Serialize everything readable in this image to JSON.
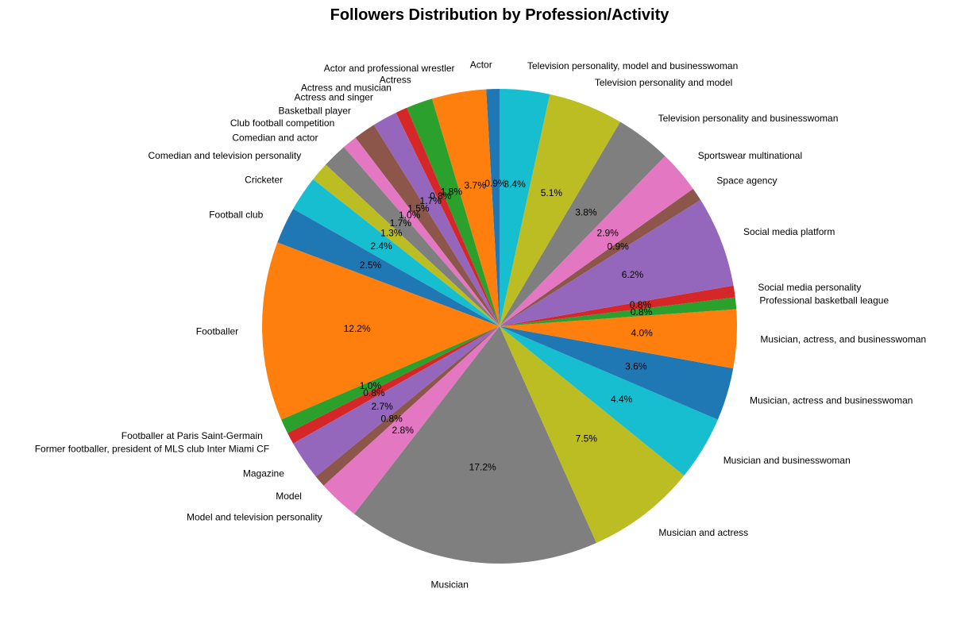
{
  "chart_data": {
    "type": "pie",
    "title": "Followers Distribution by Profession/Activity",
    "start_angle_deg": 90,
    "direction": "counterclockwise",
    "slices": [
      {
        "label": "Actor",
        "value": 0.9,
        "pct_label": "0.9%",
        "color": "#1f77b4"
      },
      {
        "label": "Actor and professional wrestler",
        "value": 3.7,
        "pct_label": "3.7%",
        "color": "#ff7f0e"
      },
      {
        "label": "Actress",
        "value": 1.8,
        "pct_label": "1.8%",
        "color": "#2ca02c"
      },
      {
        "label": "Actress and musician",
        "value": 0.8,
        "pct_label": "0.8%",
        "color": "#d62728"
      },
      {
        "label": "Actress and singer",
        "value": 1.7,
        "pct_label": "1.7%",
        "color": "#9467bd"
      },
      {
        "label": "Basketball player",
        "value": 1.5,
        "pct_label": "1.5%",
        "color": "#8c564b"
      },
      {
        "label": "Club football competition",
        "value": 1.0,
        "pct_label": "1.0%",
        "color": "#e377c2"
      },
      {
        "label": "Comedian and actor",
        "value": 1.7,
        "pct_label": "1.7%",
        "color": "#7f7f7f"
      },
      {
        "label": "Comedian and television personality",
        "value": 1.3,
        "pct_label": "1.3%",
        "color": "#bcbd22"
      },
      {
        "label": "Cricketer",
        "value": 2.4,
        "pct_label": "2.4%",
        "color": "#17becf"
      },
      {
        "label": "Football club",
        "value": 2.5,
        "pct_label": "2.5%",
        "color": "#1f77b4"
      },
      {
        "label": "Footballer",
        "value": 12.2,
        "pct_label": "12.2%",
        "color": "#ff7f0e"
      },
      {
        "label": "Footballer at Paris Saint-Germain",
        "value": 1.0,
        "pct_label": "1.0%",
        "color": "#2ca02c"
      },
      {
        "label": "Former footballer, president of MLS club Inter Miami CF",
        "value": 0.8,
        "pct_label": "0.8%",
        "color": "#d62728"
      },
      {
        "label": "Magazine",
        "value": 2.7,
        "pct_label": "2.7%",
        "color": "#9467bd"
      },
      {
        "label": "Model",
        "value": 0.8,
        "pct_label": "0.8%",
        "color": "#8c564b"
      },
      {
        "label": "Model and television personality",
        "value": 2.8,
        "pct_label": "2.8%",
        "color": "#e377c2"
      },
      {
        "label": "Musician",
        "value": 17.2,
        "pct_label": "17.2%",
        "color": "#7f7f7f"
      },
      {
        "label": "Musician and actress",
        "value": 7.5,
        "pct_label": "7.5%",
        "color": "#bcbd22"
      },
      {
        "label": "Musician and businesswoman",
        "value": 4.4,
        "pct_label": "4.4%",
        "color": "#17becf"
      },
      {
        "label": "Musician, actress and businesswoman",
        "value": 3.6,
        "pct_label": "3.6%",
        "color": "#1f77b4"
      },
      {
        "label": "Musician, actress, and businesswoman",
        "value": 4.0,
        "pct_label": "4.0%",
        "color": "#ff7f0e"
      },
      {
        "label": "Professional basketball league",
        "value": 0.8,
        "pct_label": "0.8%",
        "color": "#2ca02c"
      },
      {
        "label": "Social media personality",
        "value": 0.8,
        "pct_label": "0.8%",
        "color": "#d62728"
      },
      {
        "label": "Social media platform",
        "value": 6.2,
        "pct_label": "6.2%",
        "color": "#9467bd"
      },
      {
        "label": "Space agency",
        "value": 0.9,
        "pct_label": "0.9%",
        "color": "#8c564b"
      },
      {
        "label": "Sportswear multinational",
        "value": 2.9,
        "pct_label": "2.9%",
        "color": "#e377c2"
      },
      {
        "label": "Television personality and businesswoman",
        "value": 3.8,
        "pct_label": "3.8%",
        "color": "#7f7f7f"
      },
      {
        "label": "Television personality and model",
        "value": 5.1,
        "pct_label": "5.1%",
        "color": "#bcbd22"
      },
      {
        "label": "Television personality, model and businesswoman",
        "value": 3.4,
        "pct_label": "3.4%",
        "color": "#17becf"
      }
    ]
  }
}
